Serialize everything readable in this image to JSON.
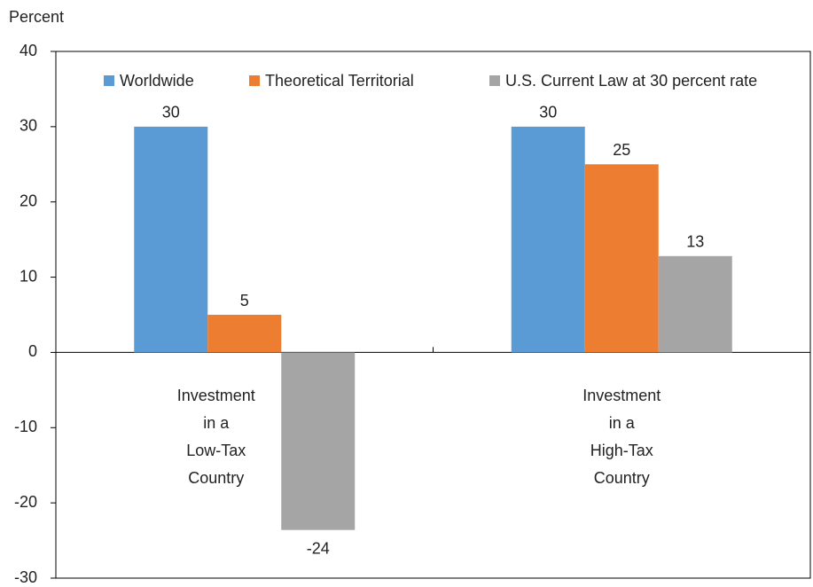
{
  "chart_data": {
    "type": "bar",
    "y_label": "Percent",
    "categories": [
      "Investment\nin a\nLow-Tax\nCountry",
      "Investment\nin a\nHigh-Tax\nCountry"
    ],
    "series": [
      {
        "name": "Worldwide",
        "color": "#5b9bd5",
        "values": [
          30,
          30
        ]
      },
      {
        "name": "Theoretical Territorial",
        "color": "#ed7d31",
        "values": [
          5,
          25
        ]
      },
      {
        "name": "U.S. Current Law at 30 percent rate",
        "color": "#a5a5a5",
        "values": [
          -23.6,
          12.8
        ],
        "value_labels": [
          "-24",
          "13"
        ]
      }
    ],
    "ylim": [
      -30,
      40
    ],
    "yticks": [
      -30,
      -20,
      -10,
      0,
      10,
      20,
      30,
      40
    ],
    "legend": "top"
  }
}
